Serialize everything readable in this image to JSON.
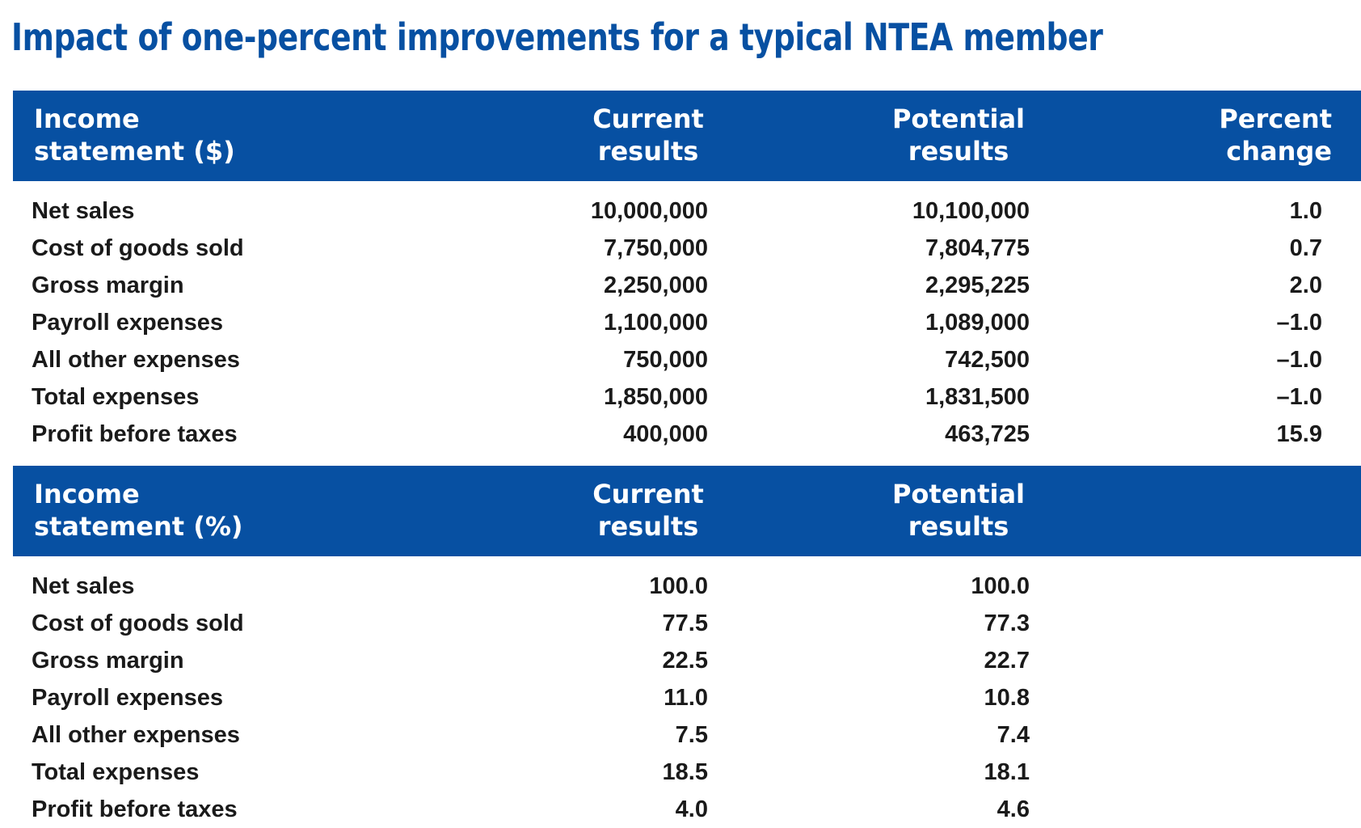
{
  "title": "Impact of one-percent improvements for a typical NTEA member",
  "table_dollars": {
    "headers": {
      "label": "Income\nstatement ($)",
      "current": "Current\nresults",
      "potential": "Potential\nresults",
      "percent": "Percent\nchange"
    },
    "rows": [
      {
        "label": "Net sales",
        "current": "10,000,000",
        "potential": "10,100,000",
        "percent": "1.0"
      },
      {
        "label": "Cost of goods sold",
        "current": "7,750,000",
        "potential": "7,804,775",
        "percent": "0.7"
      },
      {
        "label": "Gross margin",
        "current": "2,250,000",
        "potential": "2,295,225",
        "percent": "2.0"
      },
      {
        "label": "Payroll expenses",
        "current": "1,100,000",
        "potential": "1,089,000",
        "percent": "–1.0"
      },
      {
        "label": "All other expenses",
        "current": "750,000",
        "potential": "742,500",
        "percent": "–1.0"
      },
      {
        "label": "Total expenses",
        "current": "1,850,000",
        "potential": "1,831,500",
        "percent": "–1.0"
      },
      {
        "label": "Profit before taxes",
        "current": "400,000",
        "potential": "463,725",
        "percent": "15.9"
      }
    ]
  },
  "table_percent": {
    "headers": {
      "label": "Income\nstatement (%)",
      "current": "Current\nresults",
      "potential": "Potential\nresults"
    },
    "rows": [
      {
        "label": "Net sales",
        "current": "100.0",
        "potential": "100.0"
      },
      {
        "label": "Cost of goods sold",
        "current": "77.5",
        "potential": "77.3"
      },
      {
        "label": "Gross margin",
        "current": "22.5",
        "potential": "22.7"
      },
      {
        "label": "Payroll expenses",
        "current": "11.0",
        "potential": "10.8"
      },
      {
        "label": "All other expenses",
        "current": "7.5",
        "potential": "7.4"
      },
      {
        "label": "Total expenses",
        "current": "18.5",
        "potential": "18.1"
      },
      {
        "label": "Profit before taxes",
        "current": "4.0",
        "potential": "4.6"
      }
    ]
  },
  "colors": {
    "header_background": "#0750a2",
    "title_text": "#0750a2",
    "header_text": "#ffffff",
    "body_text": "#1a1a1a"
  }
}
